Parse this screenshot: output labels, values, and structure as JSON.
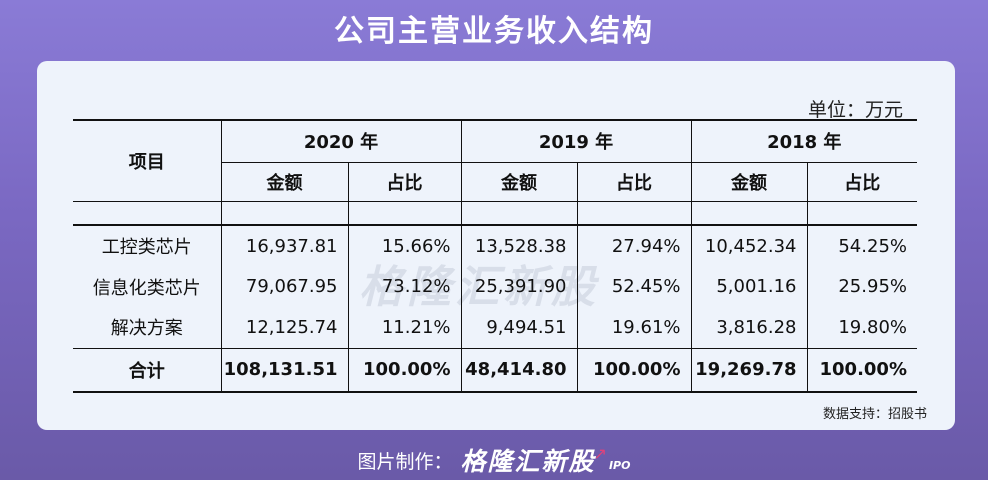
{
  "page_title": "公司主营业务收入结构",
  "unit": "单位：万元",
  "watermark": "格隆汇新股",
  "table": {
    "item_header": "项目",
    "years": [
      "2020 年",
      "2019 年",
      "2018 年"
    ],
    "sub_headers": [
      "金额",
      "占比"
    ],
    "rows": [
      {
        "label": "工控类芯片",
        "cells": [
          "16,937.81",
          "15.66%",
          "13,528.38",
          "27.94%",
          "10,452.34",
          "54.25%"
        ]
      },
      {
        "label": "信息化类芯片",
        "cells": [
          "79,067.95",
          "73.12%",
          "25,391.90",
          "52.45%",
          "5,001.16",
          "25.95%"
        ]
      },
      {
        "label": "解决方案",
        "cells": [
          "12,125.74",
          "11.21%",
          "9,494.51",
          "19.61%",
          "3,816.28",
          "19.80%"
        ]
      }
    ],
    "total": {
      "label": "合计",
      "cells": [
        "108,131.51",
        "100.00%",
        "48,414.80",
        "100.00%",
        "19,269.78",
        "100.00%"
      ]
    }
  },
  "source": "数据支持：招股书",
  "footer": {
    "label": "图片制作：",
    "brand": "格隆汇新股",
    "brand_suffix": "IPO"
  }
}
